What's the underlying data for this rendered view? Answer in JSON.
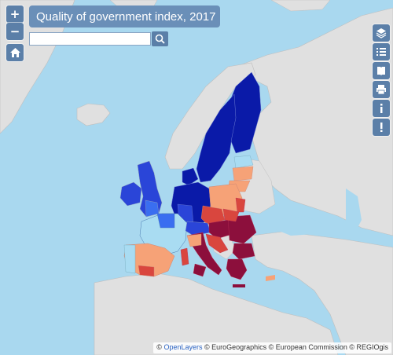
{
  "title": "Quality of government index, 2017",
  "search": {
    "placeholder": "",
    "value": ""
  },
  "zoom": {
    "in_label": "+",
    "out_label": "−"
  },
  "toolbar": {
    "items": [
      {
        "name": "layers-icon"
      },
      {
        "name": "legend-list-icon"
      },
      {
        "name": "book-icon"
      },
      {
        "name": "print-icon"
      },
      {
        "name": "info-icon"
      },
      {
        "name": "alert-icon"
      }
    ]
  },
  "attribution": {
    "prefix": "©",
    "link": "OpenLayers",
    "rest": "© EuroGeographics © European Commission © REGIOgis"
  },
  "colors": {
    "sea": "#a9d8ef",
    "land_non_eu": "#e0e0e0",
    "very_high": "#0a1aa8",
    "high": "#2a45d8",
    "above_avg": "#3a6ef0",
    "avg": "#a9dcf2",
    "below_avg": "#f6a277",
    "low": "#d9463e",
    "very_low": "#8c0f3c"
  }
}
